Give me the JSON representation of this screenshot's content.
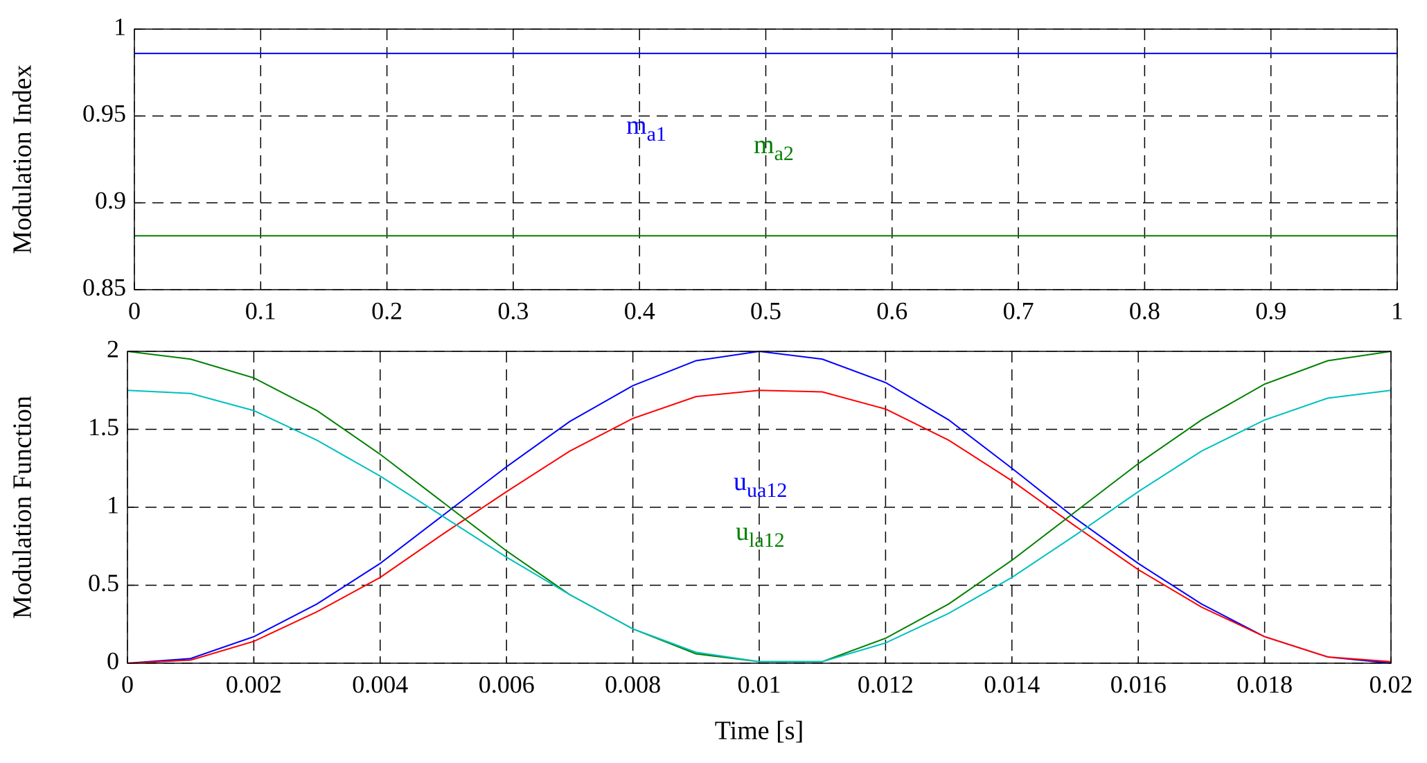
{
  "chart_data": [
    {
      "type": "line",
      "ylabel": "Modulation Index",
      "x": [
        0,
        1
      ],
      "series": [
        {
          "color": "#0000ff",
          "values": [
            0.986,
            0.986
          ]
        },
        {
          "color": "#008000",
          "values": [
            0.881,
            0.881
          ]
        }
      ],
      "xlim": [
        0,
        1
      ],
      "xticks": [
        0,
        0.1,
        0.2,
        0.3,
        0.4,
        0.5,
        0.6,
        0.7,
        0.8,
        0.9,
        1
      ],
      "ylim": [
        0.85,
        1
      ],
      "yticks": [
        0.85,
        0.9,
        0.95,
        1
      ],
      "grid": true,
      "annotations": [
        {
          "text": "m",
          "sub": "a1",
          "color": "#0000ff"
        },
        {
          "text": "m",
          "sub": "a2",
          "color": "#008000"
        }
      ]
    },
    {
      "type": "line",
      "ylabel": "Modulation Function",
      "xlabel": "Time [s]",
      "x": [
        0,
        0.001,
        0.002,
        0.003,
        0.004,
        0.005,
        0.006,
        0.007,
        0.008,
        0.009,
        0.01,
        0.011,
        0.012,
        0.013,
        0.014,
        0.015,
        0.016,
        0.017,
        0.018,
        0.019,
        0.02
      ],
      "series": [
        {
          "color": "#0000ff",
          "values": [
            0,
            0.03,
            0.17,
            0.38,
            0.64,
            0.95,
            1.26,
            1.55,
            1.78,
            1.94,
            2,
            1.95,
            1.8,
            1.56,
            1.25,
            0.93,
            0.64,
            0.38,
            0.17,
            0.04,
            0
          ]
        },
        {
          "color": "#ff0000",
          "values": [
            0,
            0.02,
            0.14,
            0.33,
            0.55,
            0.83,
            1.1,
            1.36,
            1.57,
            1.71,
            1.75,
            1.74,
            1.63,
            1.43,
            1.17,
            0.88,
            0.6,
            0.36,
            0.17,
            0.04,
            0.01
          ]
        },
        {
          "color": "#008000",
          "values": [
            2,
            1.95,
            1.83,
            1.62,
            1.34,
            1.03,
            0.72,
            0.44,
            0.22,
            0.06,
            0.01,
            0.01,
            0.16,
            0.38,
            0.66,
            0.97,
            1.28,
            1.56,
            1.79,
            1.94,
            2
          ]
        },
        {
          "color": "#00bfbf",
          "values": [
            1.75,
            1.73,
            1.62,
            1.43,
            1.2,
            0.94,
            0.68,
            0.44,
            0.22,
            0.07,
            0.01,
            0.01,
            0.13,
            0.32,
            0.55,
            0.82,
            1.1,
            1.36,
            1.56,
            1.7,
            1.75
          ]
        }
      ],
      "xlim": [
        0,
        0.02
      ],
      "xticks": [
        0,
        0.002,
        0.004,
        0.006,
        0.008,
        0.01,
        0.012,
        0.014,
        0.016,
        0.018,
        0.02
      ],
      "ylim": [
        0,
        2
      ],
      "yticks": [
        0,
        0.5,
        1,
        1.5,
        2
      ],
      "grid": true,
      "annotations": [
        {
          "text": "u",
          "sub": "ua12",
          "color": "#0000ff"
        },
        {
          "text": "u",
          "sub": "la12",
          "color": "#008000"
        }
      ]
    }
  ]
}
